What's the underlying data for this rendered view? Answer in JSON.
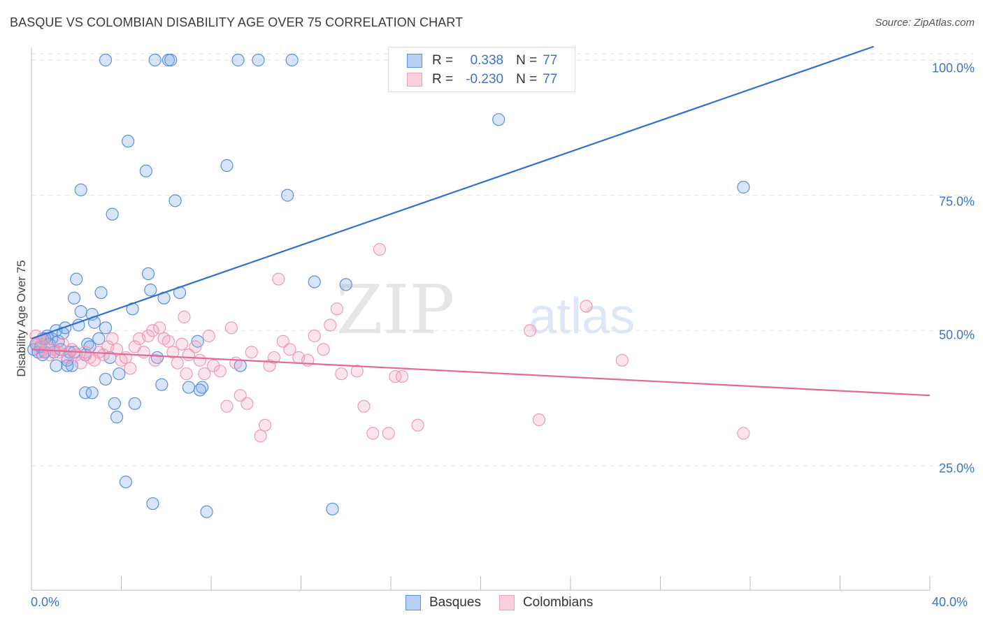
{
  "title": "BASQUE VS COLOMBIAN DISABILITY AGE OVER 75 CORRELATION CHART",
  "source": "Source: ZipAtlas.com",
  "watermark": {
    "zip": "ZIP",
    "atlas": "atlas"
  },
  "legend": {
    "r_label": "R =",
    "n_label": "N =",
    "rows": [
      {
        "r": "0.338",
        "n": "77",
        "color": "#7ea9e8"
      },
      {
        "r": "-0.230",
        "n": "77",
        "color": "#f0a3bc"
      }
    ]
  },
  "bottom_legend": [
    "Basques",
    "Colombians"
  ],
  "chart_data": {
    "type": "scatter",
    "title": "BASQUE VS COLOMBIAN DISABILITY AGE OVER 75 CORRELATION CHART",
    "xlabel": "",
    "ylabel": "Disability Age Over 75",
    "xlim": [
      0,
      40
    ],
    "ylim": [
      2,
      104
    ],
    "x_tick_labels": [
      "0.0%",
      "40.0%"
    ],
    "y_ticks": [
      25,
      50,
      75,
      100
    ],
    "y_tick_labels": [
      "25.0%",
      "50.0%",
      "75.0%",
      "100.0%"
    ],
    "grid": true,
    "legend_position": "top-center",
    "series": [
      {
        "name": "Basques",
        "color": "#5b8fe0",
        "trend": {
          "x": [
            0,
            37.5
          ],
          "y": [
            48.5,
            102.5
          ],
          "color": "#2f6fd0"
        },
        "points": [
          [
            0.1,
            46.5
          ],
          [
            0.2,
            47.5
          ],
          [
            0.3,
            46.0
          ],
          [
            0.4,
            47.0
          ],
          [
            0.5,
            48.5
          ],
          [
            0.5,
            45.5
          ],
          [
            0.6,
            46.0
          ],
          [
            0.7,
            49.0
          ],
          [
            0.8,
            47.5
          ],
          [
            0.9,
            48.5
          ],
          [
            1.0,
            46.0
          ],
          [
            1.1,
            50.0
          ],
          [
            1.2,
            48.0
          ],
          [
            1.3,
            46.5
          ],
          [
            1.4,
            49.5
          ],
          [
            1.5,
            50.5
          ],
          [
            1.6,
            44.5
          ],
          [
            1.7,
            46.0
          ],
          [
            1.8,
            43.5
          ],
          [
            1.9,
            56.0
          ],
          [
            2.0,
            59.5
          ],
          [
            2.1,
            51.0
          ],
          [
            2.2,
            53.5
          ],
          [
            2.4,
            45.5
          ],
          [
            2.5,
            47.5
          ],
          [
            2.7,
            53.0
          ],
          [
            2.8,
            51.5
          ],
          [
            3.0,
            48.5
          ],
          [
            3.1,
            57.0
          ],
          [
            3.3,
            50.5
          ],
          [
            3.3,
            41.0
          ],
          [
            3.5,
            45.0
          ],
          [
            3.7,
            36.5
          ],
          [
            3.8,
            34.0
          ],
          [
            3.9,
            42.0
          ],
          [
            4.2,
            22.0
          ],
          [
            4.5,
            54.0
          ],
          [
            4.6,
            36.5
          ],
          [
            4.3,
            85.0
          ],
          [
            3.6,
            71.5
          ],
          [
            2.2,
            76.0
          ],
          [
            3.3,
            100.0
          ],
          [
            5.1,
            79.5
          ],
          [
            5.2,
            60.5
          ],
          [
            5.3,
            57.5
          ],
          [
            5.4,
            18.0
          ],
          [
            5.6,
            45.0
          ],
          [
            5.8,
            40.0
          ],
          [
            5.9,
            56.0
          ],
          [
            6.1,
            100.0
          ],
          [
            6.2,
            100.0
          ],
          [
            5.5,
            100.0
          ],
          [
            6.4,
            74.0
          ],
          [
            6.6,
            57.0
          ],
          [
            7.0,
            39.5
          ],
          [
            7.4,
            48.0
          ],
          [
            7.6,
            39.5
          ],
          [
            7.5,
            39.0
          ],
          [
            7.8,
            16.5
          ],
          [
            8.7,
            80.5
          ],
          [
            9.3,
            43.5
          ],
          [
            9.2,
            100.0
          ],
          [
            10.1,
            100.0
          ],
          [
            11.4,
            75.0
          ],
          [
            11.6,
            100.0
          ],
          [
            12.6,
            59.0
          ],
          [
            13.4,
            17.0
          ],
          [
            14.0,
            58.5
          ],
          [
            20.8,
            89.0
          ],
          [
            31.7,
            76.5
          ],
          [
            2.4,
            38.5
          ],
          [
            2.7,
            38.5
          ],
          [
            1.6,
            43.5
          ],
          [
            1.9,
            46.0
          ],
          [
            2.6,
            47.0
          ],
          [
            1.1,
            43.5
          ],
          [
            0.6,
            48.5
          ]
        ]
      },
      {
        "name": "Colombians",
        "color": "#f0a3bc",
        "trend": {
          "x": [
            0,
            40
          ],
          "y": [
            46.5,
            38.0
          ],
          "color": "#e2689a"
        },
        "points": [
          [
            0.2,
            49.0
          ],
          [
            0.3,
            47.5
          ],
          [
            0.4,
            46.0
          ],
          [
            0.5,
            48.0
          ],
          [
            0.7,
            47.0
          ],
          [
            0.8,
            45.5
          ],
          [
            1.0,
            46.5
          ],
          [
            1.2,
            46.0
          ],
          [
            1.4,
            47.5
          ],
          [
            1.6,
            45.0
          ],
          [
            1.8,
            46.5
          ],
          [
            2.0,
            45.5
          ],
          [
            2.2,
            44.0
          ],
          [
            2.4,
            46.0
          ],
          [
            2.6,
            45.0
          ],
          [
            2.8,
            44.5
          ],
          [
            3.0,
            46.0
          ],
          [
            3.2,
            45.5
          ],
          [
            3.4,
            47.0
          ],
          [
            3.6,
            48.5
          ],
          [
            3.8,
            46.5
          ],
          [
            4.0,
            44.5
          ],
          [
            4.2,
            45.0
          ],
          [
            4.4,
            43.0
          ],
          [
            4.6,
            47.0
          ],
          [
            4.8,
            48.5
          ],
          [
            5.0,
            46.0
          ],
          [
            5.2,
            49.0
          ],
          [
            5.4,
            50.0
          ],
          [
            5.5,
            44.5
          ],
          [
            5.7,
            50.5
          ],
          [
            5.9,
            48.5
          ],
          [
            6.1,
            48.0
          ],
          [
            6.3,
            46.0
          ],
          [
            6.5,
            44.0
          ],
          [
            6.7,
            47.5
          ],
          [
            6.8,
            52.5
          ],
          [
            6.9,
            42.0
          ],
          [
            7.0,
            45.5
          ],
          [
            7.3,
            47.0
          ],
          [
            7.5,
            44.5
          ],
          [
            7.7,
            42.0
          ],
          [
            7.9,
            49.0
          ],
          [
            8.1,
            43.5
          ],
          [
            8.4,
            42.5
          ],
          [
            8.7,
            36.0
          ],
          [
            8.9,
            50.5
          ],
          [
            9.1,
            44.0
          ],
          [
            9.3,
            38.0
          ],
          [
            9.6,
            36.5
          ],
          [
            9.8,
            46.0
          ],
          [
            10.2,
            30.5
          ],
          [
            10.4,
            32.5
          ],
          [
            10.6,
            43.5
          ],
          [
            10.8,
            45.0
          ],
          [
            11.0,
            59.5
          ],
          [
            11.2,
            48.0
          ],
          [
            11.5,
            46.5
          ],
          [
            11.9,
            45.0
          ],
          [
            12.3,
            44.5
          ],
          [
            12.6,
            49.0
          ],
          [
            13.0,
            46.5
          ],
          [
            13.3,
            51.0
          ],
          [
            13.6,
            54.0
          ],
          [
            13.8,
            42.0
          ],
          [
            14.5,
            42.5
          ],
          [
            14.8,
            36.0
          ],
          [
            15.2,
            31.0
          ],
          [
            15.5,
            65.0
          ],
          [
            15.9,
            31.0
          ],
          [
            16.2,
            41.5
          ],
          [
            16.5,
            41.5
          ],
          [
            17.2,
            32.5
          ],
          [
            22.6,
            33.5
          ],
          [
            22.2,
            50.0
          ],
          [
            24.7,
            54.5
          ],
          [
            26.3,
            44.5
          ]
        ]
      }
    ],
    "extra_colombian_point": [
      31.7,
      31.0
    ]
  }
}
